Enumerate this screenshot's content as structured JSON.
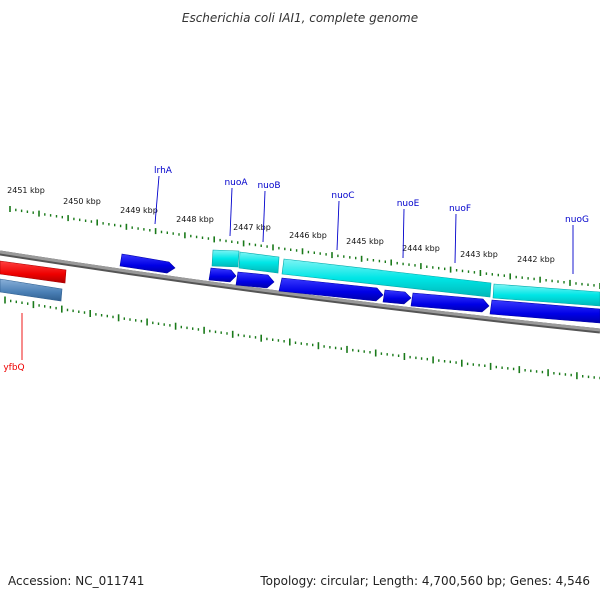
{
  "title": "Escherichia coli IAI1, complete genome",
  "accession_text": "Accession: NC_011741",
  "summary_text": "Topology: circular; Length: 4,700,560 bp; Genes: 4,546",
  "colors": {
    "backbone": "#808080",
    "tick": "#1a7a1a",
    "gene_forward": "#0000ee",
    "gene_cds": "#00e0e0",
    "gene_red": "#ee0000",
    "gene_steel": "#4a7fb5",
    "label_blue": "#0000cc",
    "label_red": "#ee0000"
  },
  "ticks": [
    {
      "label": "2451 kbp"
    },
    {
      "label": "2450 kbp"
    },
    {
      "label": "2449 kbp"
    },
    {
      "label": "2448 kbp"
    },
    {
      "label": "2447 kbp"
    },
    {
      "label": "2446 kbp"
    },
    {
      "label": "2445 kbp"
    },
    {
      "label": "2444 kbp"
    },
    {
      "label": "2443 kbp"
    },
    {
      "label": "2442 kbp"
    }
  ],
  "gene_labels": [
    {
      "name": "lrhA",
      "color": "blue"
    },
    {
      "name": "nuoA",
      "color": "blue"
    },
    {
      "name": "nuoB",
      "color": "blue"
    },
    {
      "name": "nuoC",
      "color": "blue"
    },
    {
      "name": "nuoE",
      "color": "blue"
    },
    {
      "name": "nuoF",
      "color": "blue"
    },
    {
      "name": "nuoG",
      "color": "blue"
    },
    {
      "name": "yfbQ",
      "color": "red"
    }
  ]
}
